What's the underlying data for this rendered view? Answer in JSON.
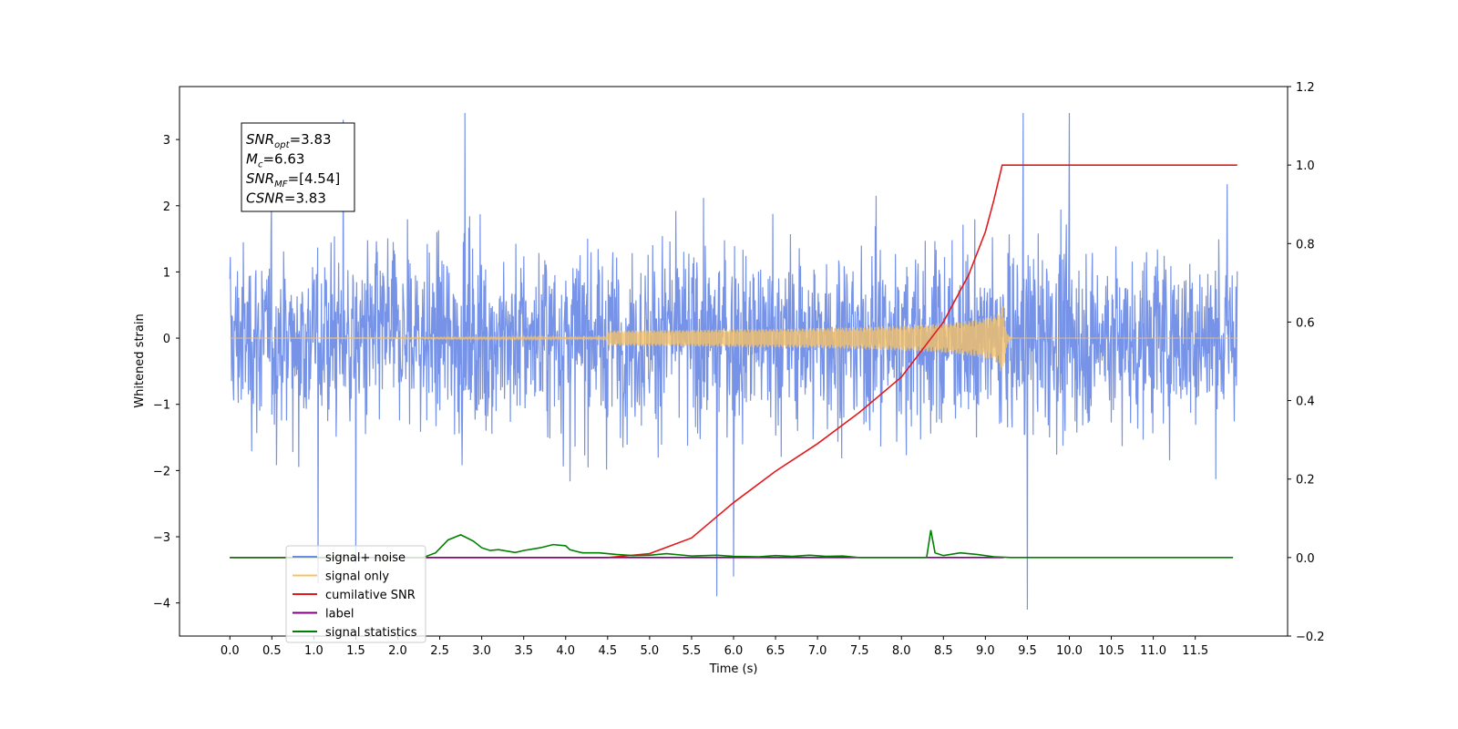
{
  "chart_data": {
    "type": "line",
    "title": "",
    "xlabel": "Time (s)",
    "ylabel": "Whitened strain",
    "xlim": [
      -0.6,
      12.6
    ],
    "ylim": [
      -4.5,
      3.8
    ],
    "y2lim": [
      -0.2,
      1.2
    ],
    "x_ticks": [
      "0.0",
      "0.5",
      "1.0",
      "1.5",
      "2.0",
      "2.5",
      "3.0",
      "3.5",
      "4.0",
      "4.5",
      "5.0",
      "5.5",
      "6.0",
      "6.5",
      "7.0",
      "7.5",
      "8.0",
      "8.5",
      "9.0",
      "9.5",
      "10.0",
      "10.5",
      "11.0",
      "11.5"
    ],
    "y_ticks": [
      "3",
      "2",
      "1",
      "0",
      "−1",
      "−2",
      "−3",
      "−4"
    ],
    "y2_ticks": [
      "1.2",
      "1.0",
      "0.8",
      "0.6",
      "0.4",
      "0.2",
      "0.0",
      "−0.2"
    ],
    "grid": false,
    "legend_position": "lower-left",
    "annotation": {
      "lines": [
        {
          "base": "SNR",
          "sub": "opt",
          "value": "=3.83"
        },
        {
          "base": "M",
          "sub": "c",
          "value": "=6.63"
        },
        {
          "base": "SNR",
          "sub": "MF",
          "value": "=[4.54]"
        },
        {
          "base": "CSNR",
          "sub": "",
          "value": "=3.83"
        }
      ]
    },
    "series": [
      {
        "name": "signal+ noise",
        "color": "#6a8ae6",
        "kind": "noise",
        "x_range": [
          0.0,
          12.0
        ],
        "amplitude_typical": 1.7,
        "peak_max": 3.4,
        "peak_min": -4.1
      },
      {
        "name": "signal only",
        "color": "#f5c266",
        "kind": "chirp",
        "x_range": [
          0.0,
          12.0
        ],
        "merger_time": 9.22,
        "peak_amplitude": 0.5
      },
      {
        "name": "cumilative SNR",
        "color": "#e31a1c",
        "axis": "right",
        "points": [
          [
            0.0,
            0.0
          ],
          [
            4.5,
            0.0
          ],
          [
            5.0,
            0.01
          ],
          [
            5.5,
            0.05
          ],
          [
            6.0,
            0.14
          ],
          [
            6.5,
            0.22
          ],
          [
            7.0,
            0.29
          ],
          [
            7.5,
            0.37
          ],
          [
            8.0,
            0.46
          ],
          [
            8.5,
            0.6
          ],
          [
            8.8,
            0.72
          ],
          [
            9.0,
            0.83
          ],
          [
            9.1,
            0.91
          ],
          [
            9.2,
            1.0
          ],
          [
            12.0,
            1.0
          ]
        ]
      },
      {
        "name": "label",
        "color": "#800080",
        "axis": "right",
        "points": [
          [
            0.0,
            0.0
          ],
          [
            9.22,
            0.0
          ]
        ]
      },
      {
        "name": "signal statistics",
        "color": "#008000",
        "axis": "right",
        "points": [
          [
            0.0,
            0.0
          ],
          [
            2.3,
            0.0
          ],
          [
            2.45,
            0.012
          ],
          [
            2.6,
            0.045
          ],
          [
            2.75,
            0.058
          ],
          [
            2.9,
            0.042
          ],
          [
            3.0,
            0.025
          ],
          [
            3.1,
            0.018
          ],
          [
            3.2,
            0.02
          ],
          [
            3.4,
            0.013
          ],
          [
            3.5,
            0.018
          ],
          [
            3.7,
            0.025
          ],
          [
            3.85,
            0.033
          ],
          [
            4.0,
            0.03
          ],
          [
            4.05,
            0.02
          ],
          [
            4.2,
            0.012
          ],
          [
            4.4,
            0.012
          ],
          [
            4.6,
            0.008
          ],
          [
            4.8,
            0.005
          ],
          [
            5.0,
            0.006
          ],
          [
            5.2,
            0.01
          ],
          [
            5.5,
            0.004
          ],
          [
            5.8,
            0.006
          ],
          [
            6.0,
            0.003
          ],
          [
            6.3,
            0.002
          ],
          [
            6.5,
            0.005
          ],
          [
            6.7,
            0.003
          ],
          [
            6.9,
            0.006
          ],
          [
            7.1,
            0.003
          ],
          [
            7.3,
            0.004
          ],
          [
            7.5,
            0.0
          ],
          [
            8.3,
            0.0
          ],
          [
            8.35,
            0.07
          ],
          [
            8.4,
            0.012
          ],
          [
            8.5,
            0.005
          ],
          [
            8.7,
            0.012
          ],
          [
            8.9,
            0.008
          ],
          [
            9.1,
            0.002
          ],
          [
            9.3,
            0.0
          ],
          [
            11.95,
            0.0
          ]
        ]
      }
    ]
  }
}
